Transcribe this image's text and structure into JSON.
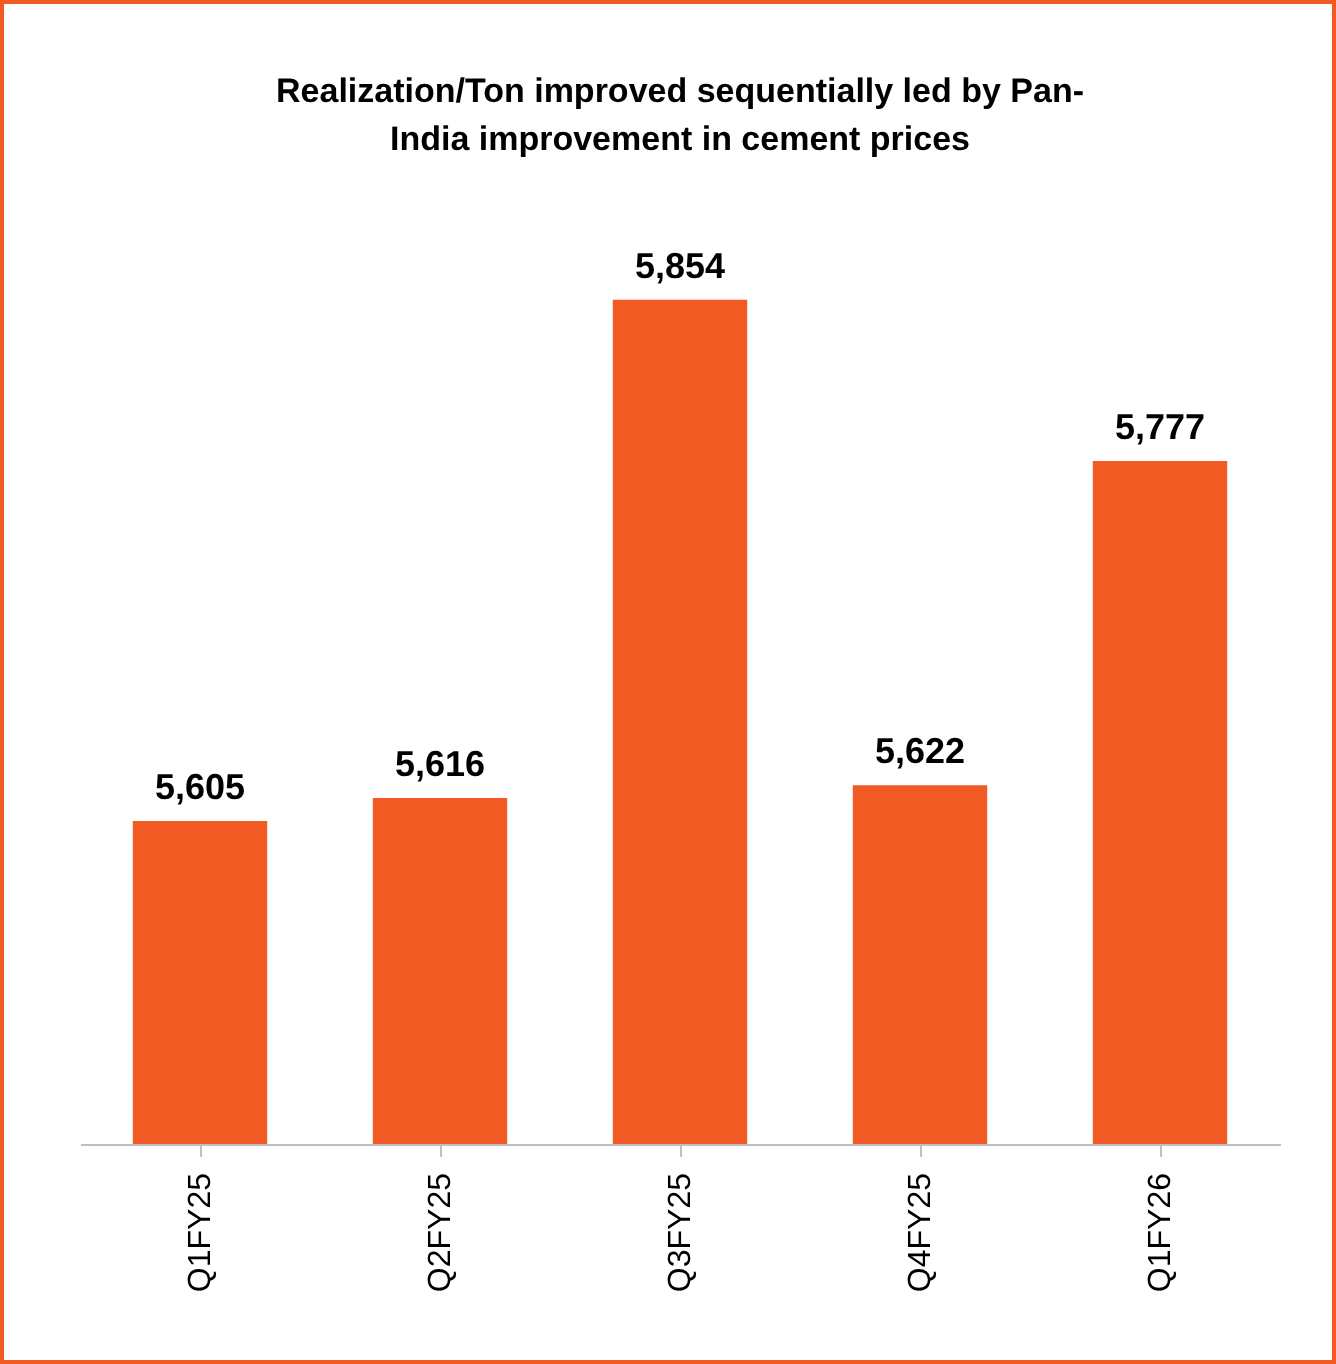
{
  "chart_data": {
    "type": "bar",
    "title": [
      "Realization/Ton improved sequentially led by Pan-",
      "India improvement in cement prices"
    ],
    "categories": [
      "Q1FY25",
      "Q2FY25",
      "Q3FY25",
      "Q4FY25",
      "Q1FY26"
    ],
    "values": [
      5605,
      5616,
      5854,
      5622,
      5777
    ],
    "color": "#f15a22",
    "value_labels": [
      "5,605",
      "5,616",
      "5,854",
      "5,622",
      "5,777"
    ]
  }
}
